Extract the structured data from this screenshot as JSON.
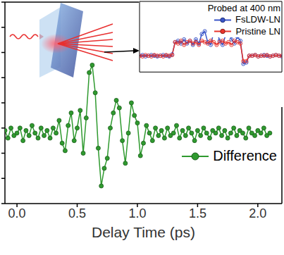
{
  "chart_data": [
    {
      "type": "line",
      "x_label": "Delay Time (ps)",
      "x": [
        -0.1,
        -0.075,
        -0.05,
        -0.025,
        0,
        0.025,
        0.05,
        0.075,
        0.1,
        0.125,
        0.15,
        0.175,
        0.2,
        0.225,
        0.25,
        0.275,
        0.3,
        0.325,
        0.35,
        0.375,
        0.4,
        0.425,
        0.45,
        0.475,
        0.5,
        0.525,
        0.55,
        0.575,
        0.6,
        0.625,
        0.65,
        0.675,
        0.7,
        0.725,
        0.75,
        0.775,
        0.8,
        0.825,
        0.85,
        0.875,
        0.9,
        0.925,
        0.95,
        0.975,
        1,
        1.025,
        1.05,
        1.075,
        1.1,
        1.125,
        1.15,
        1.175,
        1.2,
        1.225,
        1.25,
        1.275,
        1.3,
        1.325,
        1.35,
        1.375,
        1.4,
        1.425,
        1.45,
        1.475,
        1.5,
        1.525,
        1.55,
        1.575,
        1.6,
        1.625,
        1.65,
        1.675,
        1.7,
        1.725,
        1.75,
        1.775,
        1.8,
        1.825,
        1.85,
        1.875,
        1.9,
        1.925,
        1.95,
        1.975,
        2,
        2.025,
        2.05,
        2.075,
        2.1
      ],
      "series": [
        {
          "name": "Difference",
          "color": "#2f9a2f",
          "marker": "circle",
          "values": [
            -1.1,
            -1.4,
            -1.0,
            -1.3,
            -1.2,
            -1.0,
            -1.5,
            -1.1,
            -1.3,
            -0.9,
            -1.2,
            -1.4,
            -1.0,
            -1.3,
            -1.1,
            -1.4,
            -1.0,
            -1.2,
            -0.7,
            -1.6,
            -1.9,
            -0.9,
            -0.4,
            -1.5,
            -1.0,
            -0.3,
            -2.0,
            -0.6,
            1.2,
            1.5,
            0.4,
            -1.8,
            -3.3,
            -2.6,
            -2.2,
            -1.0,
            -0.4,
            0.1,
            -0.2,
            -1.5,
            -2.4,
            -1.2,
            0.0,
            -0.5,
            -0.8,
            -2.1,
            -1.6,
            -0.9,
            -1.2,
            -1.5,
            -1.0,
            -1.3,
            -1.1,
            -1.4,
            -1.0,
            -1.3,
            -1.2,
            -0.9,
            -1.4,
            -1.1,
            -1.3,
            -1.0,
            -1.2,
            -1.5,
            -1.1,
            -1.3,
            -1.0,
            -1.2,
            -1.4,
            -1.1,
            -1.2,
            -1.0,
            -1.3,
            -1.1,
            -1.4,
            -1.2,
            -1.0,
            -1.3,
            -1.1,
            -1.2,
            -1.4,
            -1.0,
            -1.2,
            -1.3,
            -1.1,
            -1.2,
            -1.0,
            -1.3,
            -1.2
          ]
        }
      ],
      "xlim": [
        -0.1,
        2.2
      ],
      "xticks": [
        {
          "value": 0,
          "label": "0.0"
        },
        0.5,
        {
          "value": 1,
          "label": "1.0"
        },
        1.5,
        {
          "value": 2,
          "label": "2.0"
        }
      ],
      "ylim": [
        -4,
        4
      ],
      "yticks": [
        -4,
        -3,
        -2,
        -1,
        0,
        1,
        2,
        3,
        4
      ],
      "tick_labels": "x",
      "legend": "lower right"
    },
    {
      "type": "line",
      "title": "Probed at 400 nm",
      "x": [
        0,
        0.05,
        0.1,
        0.15,
        0.2,
        0.25,
        0.3,
        0.35,
        0.4,
        0.45,
        0.5,
        0.55,
        0.6,
        0.65,
        0.7,
        0.75,
        0.8,
        0.85,
        0.9,
        0.95,
        1,
        1.05,
        1.1,
        1.15,
        1.2,
        1.25,
        1.3,
        1.35,
        1.4,
        1.45,
        1.5,
        1.55,
        1.6,
        1.65,
        1.7,
        1.75,
        1.8,
        1.85,
        1.9,
        1.95,
        2,
        2.05,
        2.1,
        2.15,
        2.2,
        2.25,
        2.3,
        2.35,
        2.4
      ],
      "series": [
        {
          "name": "FsLDW-LN",
          "color": "#3a55c8",
          "marker": "circle",
          "values": [
            0,
            0.05,
            -0.05,
            0,
            0.05,
            0,
            -0.05,
            0,
            0.05,
            0,
            -0.05,
            0.1,
            1.0,
            1.1,
            0.9,
            1.2,
            0.9,
            1.1,
            0.8,
            1.2,
            0.9,
            1.6,
            1.8,
            1.0,
            0.8,
            1.7,
            1.9,
            1.1,
            0.8,
            1.5,
            1.8,
            1.2,
            0.9,
            1.4,
            1.1,
            -0.6,
            -0.5,
            0,
            0,
            0.05,
            -0.05,
            0,
            0.05,
            0,
            -0.05,
            0,
            0.05,
            0,
            -0.05
          ]
        },
        {
          "name": "Pristine LN",
          "color": "#e8342c",
          "marker": "circle",
          "values": [
            0,
            -0.05,
            0.05,
            0,
            -0.05,
            0.05,
            0,
            0,
            -0.05,
            0.05,
            0,
            0.05,
            1.0,
            0.9,
            1.1,
            0.8,
            1.0,
            1.1,
            0.9,
            1.0,
            0.8,
            1.1,
            1.0,
            0.9,
            1.1,
            1.0,
            0.8,
            1.0,
            1.1,
            0.9,
            1.0,
            0.8,
            1.1,
            1.0,
            0.9,
            -0.4,
            -0.4,
            0,
            0,
            0.05,
            -0.05,
            0,
            0,
            0.05,
            -0.05,
            0,
            0.05,
            0,
            0
          ]
        }
      ],
      "xlim": [
        0,
        2.4
      ],
      "ylim": [
        -1.2,
        4
      ],
      "tick_labels": false,
      "legend": "upper right"
    }
  ]
}
